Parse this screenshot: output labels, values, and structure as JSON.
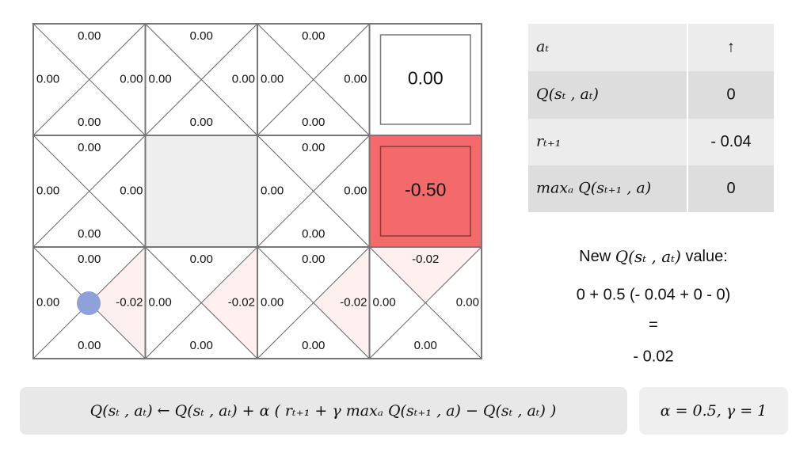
{
  "grid": {
    "rows": [
      [
        {
          "kind": "q",
          "up": "0.00",
          "left": "0.00",
          "right": "0.00",
          "down": "0.00"
        },
        {
          "kind": "q",
          "up": "0.00",
          "left": "0.00",
          "right": "0.00",
          "down": "0.00"
        },
        {
          "kind": "q",
          "up": "0.00",
          "left": "0.00",
          "right": "0.00",
          "down": "0.00"
        },
        {
          "kind": "terminal",
          "value": "0.00"
        }
      ],
      [
        {
          "kind": "q",
          "up": "0.00",
          "left": "0.00",
          "right": "0.00",
          "down": "0.00"
        },
        {
          "kind": "wall"
        },
        {
          "kind": "q",
          "up": "0.00",
          "left": "0.00",
          "right": "0.00",
          "down": "0.00"
        },
        {
          "kind": "terminal",
          "value": "-0.50"
        }
      ],
      [
        {
          "kind": "q",
          "up": "0.00",
          "left": "0.00",
          "right": "-0.02",
          "down": "0.00"
        },
        {
          "kind": "q",
          "up": "0.00",
          "left": "0.00",
          "right": "-0.02",
          "down": "0.00"
        },
        {
          "kind": "q",
          "up": "0.00",
          "left": "0.00",
          "right": "-0.02",
          "down": "0.00"
        },
        {
          "kind": "q",
          "up": "-0.02",
          "left": "0.00",
          "right": "0.00",
          "down": "0.00"
        }
      ]
    ]
  },
  "table": {
    "rows": [
      [
        "aₜ",
        "↑"
      ],
      [
        "Q(sₜ , aₜ)",
        "0"
      ],
      [
        "rₜ₊₁",
        "- 0.04"
      ],
      [
        "maxₐ Q(sₜ₊₁ , a)",
        "0"
      ]
    ]
  },
  "update": {
    "heading": [
      "New",
      "Q(sₜ , aₜ)",
      "value:"
    ],
    "expression": "0 + 0.5 (- 0.04 + 0 - 0)",
    "equals": "=",
    "result": "- 0.02"
  },
  "formula": "Q(sₜ , aₜ)  ← Q(sₜ , aₜ) + α ( rₜ₊₁ + γ maxₐ Q(sₜ₊₁ , a) − Q(sₜ , aₜ) )",
  "params": "α = 0.5,  γ = 1"
}
